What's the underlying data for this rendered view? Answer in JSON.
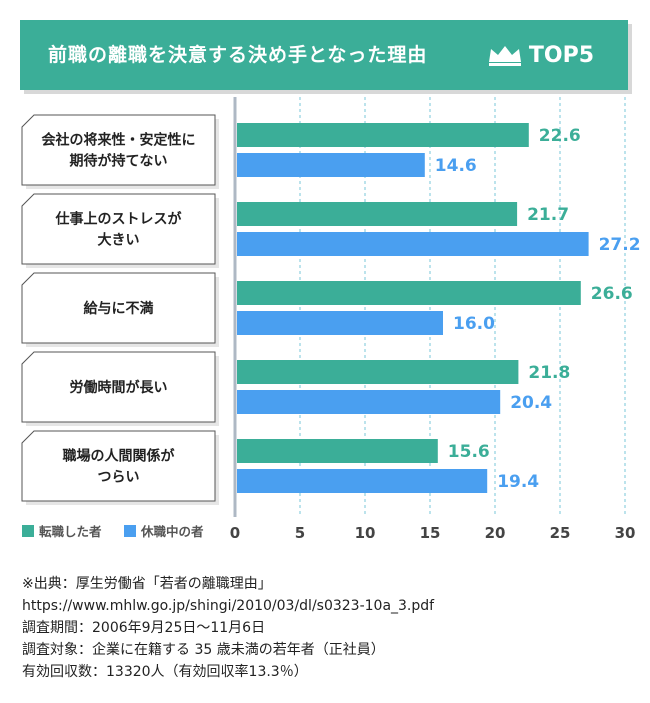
{
  "header": {
    "title": "前職の離職を決意する決め手となった理由",
    "badge": "TOP5",
    "badge_icon": "crown-icon"
  },
  "colors": {
    "primary": "#3bae98",
    "secondary": "#4a9ff0",
    "grid": "#8fd0e0",
    "label_border": "#555555"
  },
  "chart_data": {
    "type": "bar",
    "orientation": "horizontal",
    "title": "前職の離職を決意する決め手となった理由",
    "categories": [
      "会社の将来性・安定性に\n期待が持てない",
      "仕事上のストレスが\n大きい",
      "給与に不満",
      "労働時間が長い",
      "職場の人間関係が\nつらい"
    ],
    "series": [
      {
        "name": "転職した者",
        "values": [
          22.6,
          21.7,
          26.6,
          21.8,
          15.6
        ],
        "color": "#3bae98"
      },
      {
        "name": "休職中の者",
        "values": [
          14.6,
          27.2,
          16.0,
          20.4,
          19.4
        ],
        "color": "#4a9ff0"
      }
    ],
    "xlim": [
      0,
      30
    ],
    "xticks": [
      0,
      5,
      10,
      15,
      20,
      25,
      30
    ],
    "grid": true,
    "legend": "bottom-left"
  },
  "footer": {
    "lines": [
      "※出典：厚生労働省「若者の離職理由」",
      "https://www.mhlw.go.jp/shingi/2010/03/dl/s0323-10a_3.pdf",
      "調査期間：2006年9月25日～11月6日",
      "調査対象：企業に在籍する 35 歳未満の若年者（正社員）",
      "有効回収数：13320人（有効回収率13.3％）"
    ]
  }
}
